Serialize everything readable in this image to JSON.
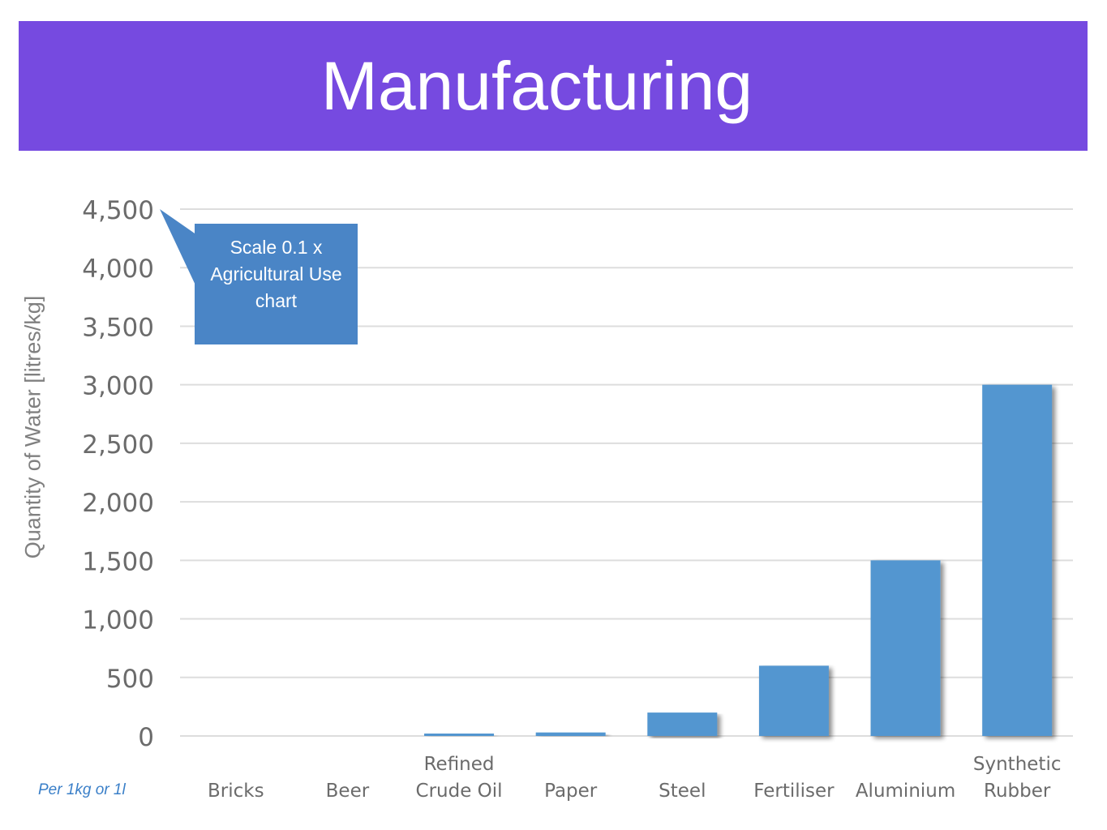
{
  "title": "Manufacturing",
  "note": "Per 1kg or 1l",
  "callout": {
    "lines": [
      "Scale 0.1 x",
      "Agricultural Use",
      "chart"
    ]
  },
  "colors": {
    "header_bg": "#764ae0",
    "bar": "#5296d0",
    "callout_bg": "#4a85c6",
    "note_text": "#3a7fc8"
  },
  "chart_data": {
    "type": "bar",
    "categories": [
      "Bricks",
      "Beer",
      "Refined Crude Oil",
      "Paper",
      "Steel",
      "Fertiliser",
      "Aluminium",
      "Synthetic Rubber"
    ],
    "category_lines": [
      [
        "Bricks"
      ],
      [
        "Beer"
      ],
      [
        "Refined",
        "Crude Oil"
      ],
      [
        "Paper"
      ],
      [
        "Steel"
      ],
      [
        "Fertiliser"
      ],
      [
        "Aluminium"
      ],
      [
        "Synthetic",
        "Rubber"
      ]
    ],
    "values": [
      0,
      0,
      10,
      30,
      200,
      600,
      1500,
      3000
    ],
    "ylabel": "Quantity of Water [litres/kg]",
    "ylim": [
      0,
      4500
    ],
    "yticks": [
      0,
      500,
      1000,
      1500,
      2000,
      2500,
      3000,
      3500,
      4000,
      4500
    ],
    "ytick_labels": [
      "0",
      "500",
      "1,000",
      "1,500",
      "2,000",
      "2,500",
      "3,000",
      "3,500",
      "4,000",
      "4,500"
    ],
    "grid": true
  }
}
